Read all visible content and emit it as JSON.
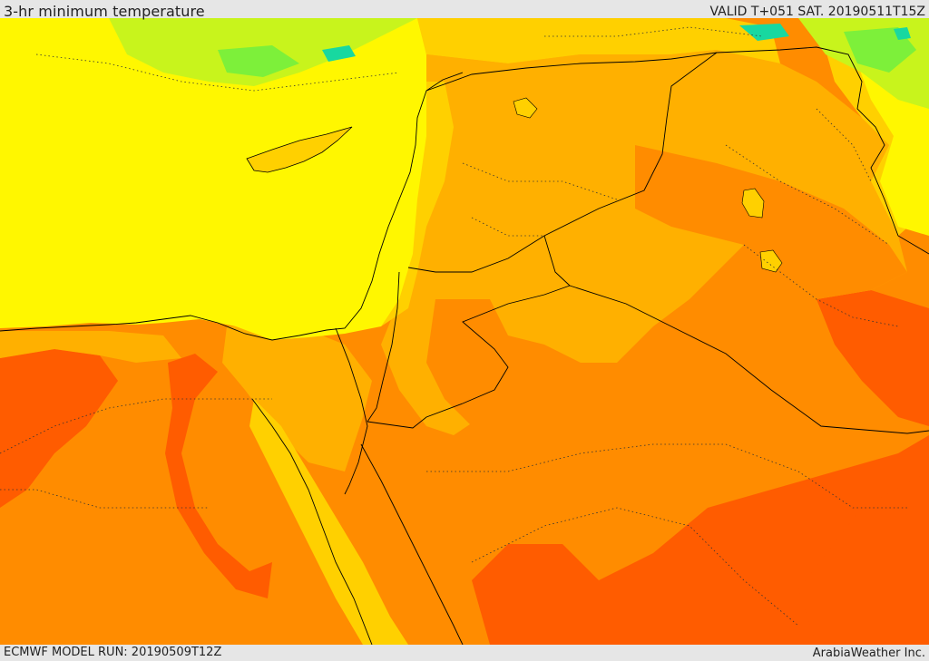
{
  "header": {
    "title": "3-hr minimum temperature",
    "valid": "VALID T+051 SAT. 20190511T15Z"
  },
  "footer": {
    "model_run": "ECMWF MODEL RUN: 20190509T12Z",
    "credit": "ArabiaWeather Inc."
  },
  "map": {
    "palette": {
      "cool_cyan": "#18d8a0",
      "green": "#7df03a",
      "yellow_green": "#c8f41c",
      "yellow": "#fff700",
      "gold": "#ffd000",
      "amber": "#ffb000",
      "orange": "#ff8c00",
      "dark_orange": "#ff5c00",
      "border": "#000000"
    }
  }
}
